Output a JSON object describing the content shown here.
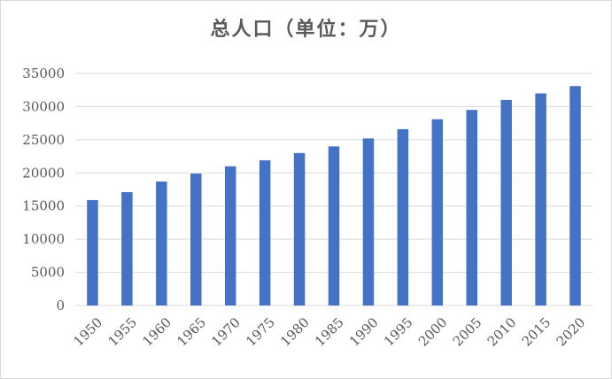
{
  "chart_data": {
    "type": "bar",
    "title": "总人口（单位：万）",
    "xlabel": "",
    "ylabel": "",
    "categories": [
      "1950",
      "1955",
      "1960",
      "1965",
      "1970",
      "1975",
      "1980",
      "1985",
      "1990",
      "1995",
      "2000",
      "2005",
      "2010",
      "2015",
      "2020"
    ],
    "values": [
      15900,
      17100,
      18700,
      19900,
      21000,
      21900,
      23000,
      24000,
      25200,
      26600,
      28100,
      29500,
      31000,
      32000,
      33100
    ],
    "ylim": [
      0,
      35000
    ],
    "yticks": [
      "0",
      "5000",
      "10000",
      "15000",
      "20000",
      "25000",
      "30000",
      "35000"
    ],
    "grid": true,
    "legend": "none",
    "bar_color": "#4472c4"
  }
}
